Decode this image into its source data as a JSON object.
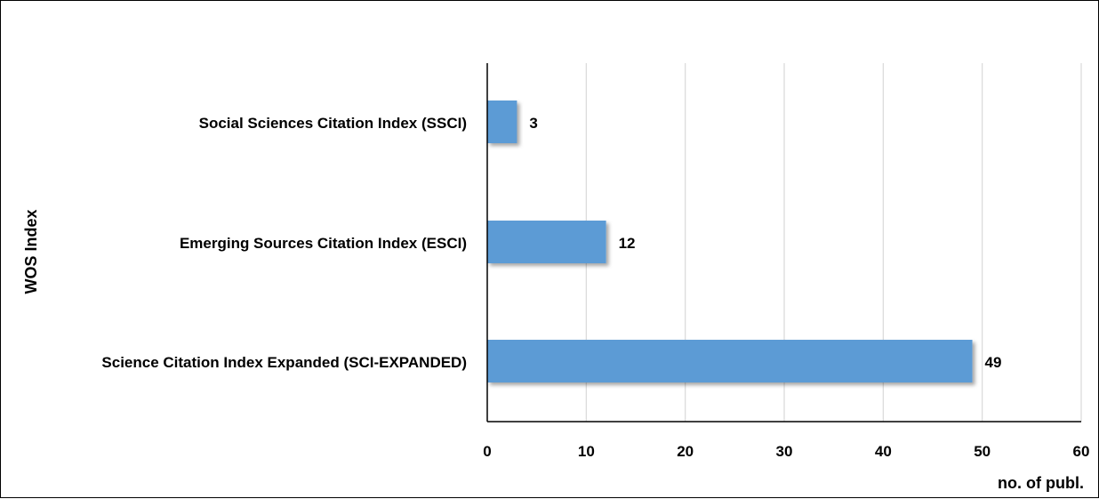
{
  "chart_data": {
    "type": "bar",
    "orientation": "horizontal",
    "title": "",
    "categories": [
      "Social Sciences Citation Index (SSCI)",
      "Emerging Sources Citation Index (ESCI)",
      "Science Citation Index Expanded (SCI-EXPANDED)"
    ],
    "values": [
      3,
      12,
      49
    ],
    "xlabel": "no. of publ.",
    "ylabel": "WOS Index",
    "xlim": [
      0,
      60
    ],
    "xticks": [
      0,
      10,
      20,
      30,
      40,
      50,
      60
    ],
    "grid": true,
    "grid_axis": "x",
    "data_labels": true,
    "legend": "none",
    "colors": {
      "bar": "#5b9bd5",
      "grid": "#d9d9d9",
      "axis": "#000000",
      "text": "#000000"
    }
  }
}
